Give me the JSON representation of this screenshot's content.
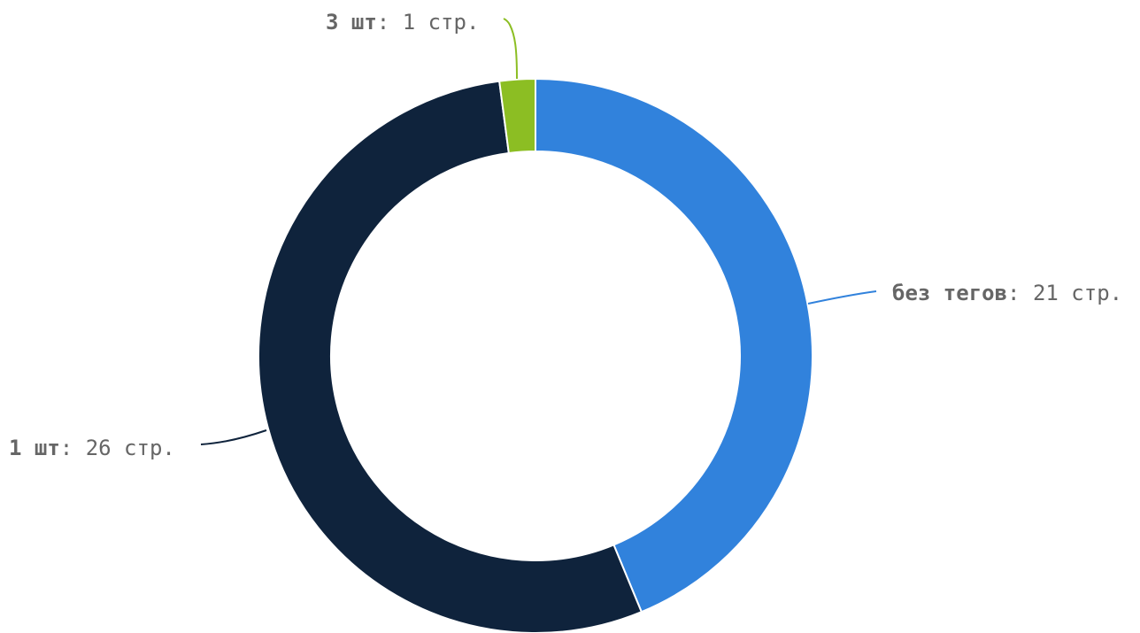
{
  "chart_data": {
    "type": "pie",
    "donut": true,
    "start_at": "12 o'clock",
    "direction": "clockwise",
    "unit": "стр.",
    "slices": [
      {
        "label": "без тегов",
        "value": 21,
        "value_text": "21 стр.",
        "color": "#3182dc"
      },
      {
        "label": "1 шт",
        "value": 26,
        "value_text": "26 стр.",
        "color": "#0f233c"
      },
      {
        "label": "3 шт",
        "value": 1,
        "value_text": "1 стр.",
        "color": "#8cbe23"
      }
    ]
  }
}
